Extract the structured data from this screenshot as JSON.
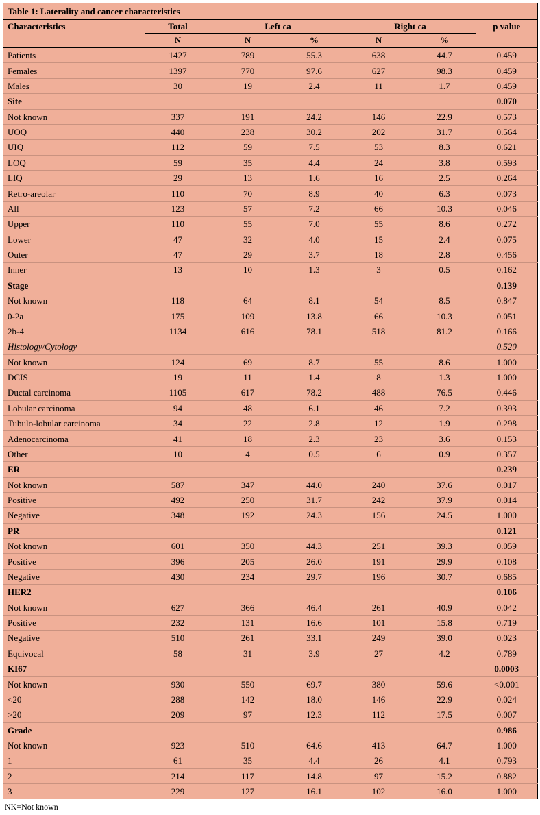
{
  "title": "Table 1: Laterality and cancer characteristics",
  "footnote": "NK=Not known",
  "colors": {
    "table_bg": "#f0af99",
    "border": "#000000"
  },
  "header": {
    "characteristics": "Characteristics",
    "total": "Total",
    "left_ca": "Left ca",
    "right_ca": "Right ca",
    "p_value": "p value",
    "n": "N",
    "percent": "%"
  },
  "rows": [
    {
      "label": "Patients",
      "variant": "data",
      "total": "1427",
      "left_n": "789",
      "left_pct": "55.3",
      "right_n": "638",
      "right_pct": "44.7",
      "p": "0.459"
    },
    {
      "label": "Females",
      "variant": "data",
      "total": "1397",
      "left_n": "770",
      "left_pct": "97.6",
      "right_n": "627",
      "right_pct": "98.3",
      "p": "0.459"
    },
    {
      "label": "Males",
      "variant": "data",
      "total": "30",
      "left_n": "19",
      "left_pct": "2.4",
      "right_n": "11",
      "right_pct": "1.7",
      "p": "0.459"
    },
    {
      "label": "Site",
      "variant": "section-bold",
      "total": "",
      "left_n": "",
      "left_pct": "",
      "right_n": "",
      "right_pct": "",
      "p": "0.070"
    },
    {
      "label": "Not known",
      "variant": "data",
      "total": "337",
      "left_n": "191",
      "left_pct": "24.2",
      "right_n": "146",
      "right_pct": "22.9",
      "p": "0.573"
    },
    {
      "label": "UOQ",
      "variant": "data",
      "total": "440",
      "left_n": "238",
      "left_pct": "30.2",
      "right_n": "202",
      "right_pct": "31.7",
      "p": "0.564"
    },
    {
      "label": "UIQ",
      "variant": "data",
      "total": "112",
      "left_n": "59",
      "left_pct": "7.5",
      "right_n": "53",
      "right_pct": "8.3",
      "p": "0.621"
    },
    {
      "label": "LOQ",
      "variant": "data",
      "total": "59",
      "left_n": "35",
      "left_pct": "4.4",
      "right_n": "24",
      "right_pct": "3.8",
      "p": "0.593"
    },
    {
      "label": "LIQ",
      "variant": "data",
      "total": "29",
      "left_n": "13",
      "left_pct": "1.6",
      "right_n": "16",
      "right_pct": "2.5",
      "p": "0.264"
    },
    {
      "label": "Retro-areolar",
      "variant": "data",
      "total": "110",
      "left_n": "70",
      "left_pct": "8.9",
      "right_n": "40",
      "right_pct": "6.3",
      "p": "0.073"
    },
    {
      "label": "All",
      "variant": "data",
      "total": "123",
      "left_n": "57",
      "left_pct": "7.2",
      "right_n": "66",
      "right_pct": "10.3",
      "p": "0.046"
    },
    {
      "label": "Upper",
      "variant": "data",
      "total": "110",
      "left_n": "55",
      "left_pct": "7.0",
      "right_n": "55",
      "right_pct": "8.6",
      "p": "0.272"
    },
    {
      "label": "Lower",
      "variant": "data",
      "total": "47",
      "left_n": "32",
      "left_pct": "4.0",
      "right_n": "15",
      "right_pct": "2.4",
      "p": "0.075"
    },
    {
      "label": "Outer",
      "variant": "data",
      "total": "47",
      "left_n": "29",
      "left_pct": "3.7",
      "right_n": "18",
      "right_pct": "2.8",
      "p": "0.456"
    },
    {
      "label": "Inner",
      "variant": "data",
      "total": "13",
      "left_n": "10",
      "left_pct": "1.3",
      "right_n": "3",
      "right_pct": "0.5",
      "p": "0.162"
    },
    {
      "label": "Stage",
      "variant": "section-bold",
      "total": "",
      "left_n": "",
      "left_pct": "",
      "right_n": "",
      "right_pct": "",
      "p": "0.139"
    },
    {
      "label": "Not known",
      "variant": "data",
      "total": "118",
      "left_n": "64",
      "left_pct": "8.1",
      "right_n": "54",
      "right_pct": "8.5",
      "p": "0.847"
    },
    {
      "label": "0-2a",
      "variant": "data",
      "total": "175",
      "left_n": "109",
      "left_pct": "13.8",
      "right_n": "66",
      "right_pct": "10.3",
      "p": "0.051"
    },
    {
      "label": "2b-4",
      "variant": "data",
      "total": "1134",
      "left_n": "616",
      "left_pct": "78.1",
      "right_n": "518",
      "right_pct": "81.2",
      "p": "0.166"
    },
    {
      "label": "Histology/Cytology",
      "variant": "section-italic",
      "total": "",
      "left_n": "",
      "left_pct": "",
      "right_n": "",
      "right_pct": "",
      "p": "0.520"
    },
    {
      "label": "Not known",
      "variant": "data",
      "total": "124",
      "left_n": "69",
      "left_pct": "8.7",
      "right_n": "55",
      "right_pct": "8.6",
      "p": "1.000"
    },
    {
      "label": "DCIS",
      "variant": "data",
      "total": "19",
      "left_n": "11",
      "left_pct": "1.4",
      "right_n": "8",
      "right_pct": "1.3",
      "p": "1.000"
    },
    {
      "label": "Ductal carcinoma",
      "variant": "data",
      "total": "1105",
      "left_n": "617",
      "left_pct": "78.2",
      "right_n": "488",
      "right_pct": "76.5",
      "p": "0.446"
    },
    {
      "label": "Lobular carcinoma",
      "variant": "data",
      "total": "94",
      "left_n": "48",
      "left_pct": "6.1",
      "right_n": "46",
      "right_pct": "7.2",
      "p": "0.393"
    },
    {
      "label": "Tubulo-lobular carcinoma",
      "variant": "data",
      "total": "34",
      "left_n": "22",
      "left_pct": "2.8",
      "right_n": "12",
      "right_pct": "1.9",
      "p": "0.298"
    },
    {
      "label": "Adenocarcinoma",
      "variant": "data",
      "total": "41",
      "left_n": "18",
      "left_pct": "2.3",
      "right_n": "23",
      "right_pct": "3.6",
      "p": "0.153"
    },
    {
      "label": "Other",
      "variant": "data",
      "total": "10",
      "left_n": "4",
      "left_pct": "0.5",
      "right_n": "6",
      "right_pct": "0.9",
      "p": "0.357"
    },
    {
      "label": "ER",
      "variant": "section-bold",
      "total": "",
      "left_n": "",
      "left_pct": "",
      "right_n": "",
      "right_pct": "",
      "p": "0.239"
    },
    {
      "label": "Not known",
      "variant": "data",
      "total": "587",
      "left_n": "347",
      "left_pct": "44.0",
      "right_n": "240",
      "right_pct": "37.6",
      "p": "0.017"
    },
    {
      "label": "Positive",
      "variant": "data",
      "total": "492",
      "left_n": "250",
      "left_pct": "31.7",
      "right_n": "242",
      "right_pct": "37.9",
      "p": "0.014"
    },
    {
      "label": "Negative",
      "variant": "data",
      "total": "348",
      "left_n": "192",
      "left_pct": "24.3",
      "right_n": "156",
      "right_pct": "24.5",
      "p": "1.000"
    },
    {
      "label": "PR",
      "variant": "section-bold",
      "total": "",
      "left_n": "",
      "left_pct": "",
      "right_n": "",
      "right_pct": "",
      "p": "0.121"
    },
    {
      "label": "Not known",
      "variant": "data",
      "total": "601",
      "left_n": "350",
      "left_pct": "44.3",
      "right_n": "251",
      "right_pct": "39.3",
      "p": "0.059"
    },
    {
      "label": "Positive",
      "variant": "data",
      "total": "396",
      "left_n": "205",
      "left_pct": "26.0",
      "right_n": "191",
      "right_pct": "29.9",
      "p": "0.108"
    },
    {
      "label": "Negative",
      "variant": "data",
      "total": "430",
      "left_n": "234",
      "left_pct": "29.7",
      "right_n": "196",
      "right_pct": "30.7",
      "p": "0.685"
    },
    {
      "label": "HER2",
      "variant": "section-bold",
      "total": "",
      "left_n": "",
      "left_pct": "",
      "right_n": "",
      "right_pct": "",
      "p": "0.106"
    },
    {
      "label": "Not known",
      "variant": "data",
      "total": "627",
      "left_n": "366",
      "left_pct": "46.4",
      "right_n": "261",
      "right_pct": "40.9",
      "p": "0.042"
    },
    {
      "label": "Positive",
      "variant": "data",
      "total": "232",
      "left_n": "131",
      "left_pct": "16.6",
      "right_n": "101",
      "right_pct": "15.8",
      "p": "0.719"
    },
    {
      "label": "Negative",
      "variant": "data",
      "total": "510",
      "left_n": "261",
      "left_pct": "33.1",
      "right_n": "249",
      "right_pct": "39.0",
      "p": "0.023"
    },
    {
      "label": "Equivocal",
      "variant": "data",
      "total": "58",
      "left_n": "31",
      "left_pct": "3.9",
      "right_n": "27",
      "right_pct": "4.2",
      "p": "0.789"
    },
    {
      "label": "KI67",
      "variant": "section-bold",
      "total": "",
      "left_n": "",
      "left_pct": "",
      "right_n": "",
      "right_pct": "",
      "p": "0.0003"
    },
    {
      "label": "Not known",
      "variant": "data",
      "total": "930",
      "left_n": "550",
      "left_pct": "69.7",
      "right_n": "380",
      "right_pct": "59.6",
      "p": "<0.001"
    },
    {
      "label": "<20",
      "variant": "data",
      "total": "288",
      "left_n": "142",
      "left_pct": "18.0",
      "right_n": "146",
      "right_pct": "22.9",
      "p": "0.024"
    },
    {
      "label": ">20",
      "variant": "data",
      "total": "209",
      "left_n": "97",
      "left_pct": "12.3",
      "right_n": "112",
      "right_pct": "17.5",
      "p": "0.007"
    },
    {
      "label": "Grade",
      "variant": "section-bold",
      "total": "",
      "left_n": "",
      "left_pct": "",
      "right_n": "",
      "right_pct": "",
      "p": "0.986"
    },
    {
      "label": "Not known",
      "variant": "data",
      "total": "923",
      "left_n": "510",
      "left_pct": "64.6",
      "right_n": "413",
      "right_pct": "64.7",
      "p": "1.000"
    },
    {
      "label": "1",
      "variant": "data",
      "total": "61",
      "left_n": "35",
      "left_pct": "4.4",
      "right_n": "26",
      "right_pct": "4.1",
      "p": "0.793"
    },
    {
      "label": "2",
      "variant": "data",
      "total": "214",
      "left_n": "117",
      "left_pct": "14.8",
      "right_n": "97",
      "right_pct": "15.2",
      "p": "0.882"
    },
    {
      "label": "3",
      "variant": "data",
      "total": "229",
      "left_n": "127",
      "left_pct": "16.1",
      "right_n": "102",
      "right_pct": "16.0",
      "p": "1.000"
    }
  ]
}
